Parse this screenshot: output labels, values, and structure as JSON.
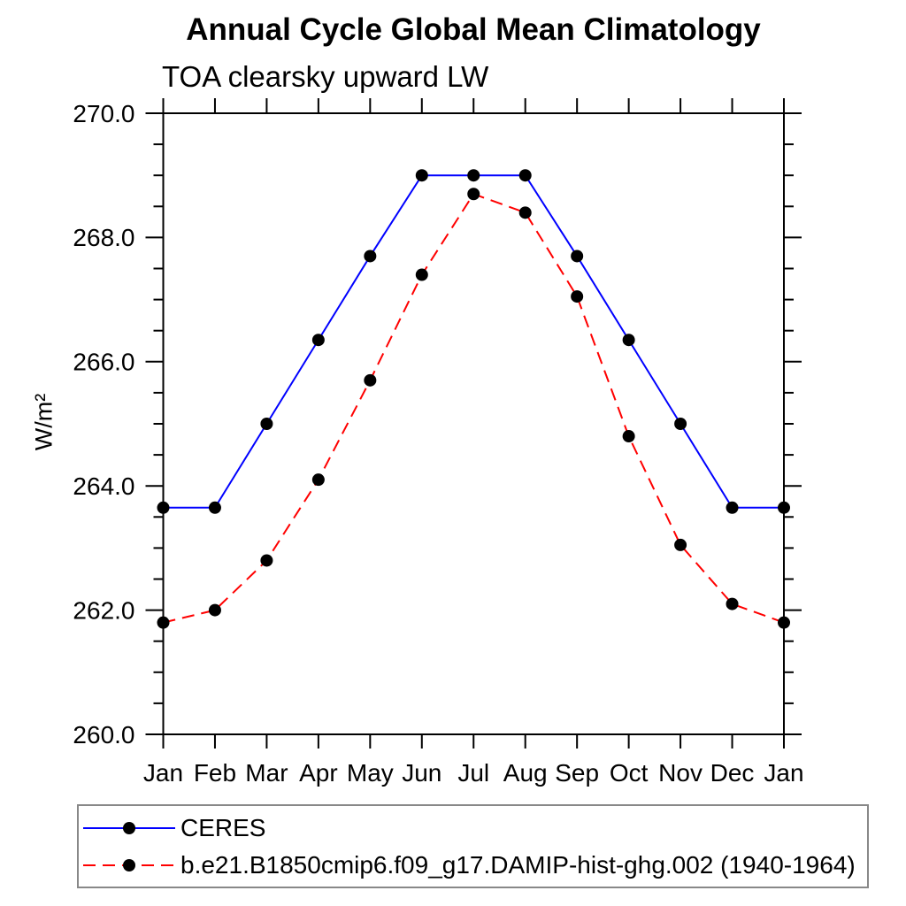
{
  "title": "Annual Cycle Global Mean Climatology",
  "subtitle": "TOA clearsky upward LW",
  "ylabel": "W/m²",
  "chart_data": {
    "type": "line",
    "categories": [
      "Jan",
      "Feb",
      "Mar",
      "Apr",
      "May",
      "Jun",
      "Jul",
      "Aug",
      "Sep",
      "Oct",
      "Nov",
      "Dec",
      "Jan"
    ],
    "title": "Annual Cycle Global Mean Climatology",
    "subtitle": "TOA clearsky upward LW",
    "xlabel": "",
    "ylabel": "W/m²",
    "ylim": [
      260.0,
      270.0
    ],
    "ytick_major_step": 2.0,
    "ytick_minor_step": 0.5,
    "ytick_labels": [
      "260.0",
      "262.0",
      "264.0",
      "266.0",
      "268.0",
      "270.0"
    ],
    "ytick_values": [
      260.0,
      262.0,
      264.0,
      266.0,
      268.0,
      270.0
    ],
    "grid": false,
    "legend_position": "bottom-left-box",
    "axis_color": "#000000",
    "marker_color": "#000000",
    "series": [
      {
        "name": "CERES",
        "color": "#0000ff",
        "style": "solid",
        "values": [
          263.65,
          263.65,
          265.0,
          266.35,
          267.7,
          269.0,
          269.0,
          269.0,
          267.7,
          266.35,
          265.0,
          263.65,
          263.65
        ]
      },
      {
        "name": "b.e21.B1850cmip6.f09_g17.DAMIP-hist-ghg.002 (1940-1964)",
        "color": "#ff0000",
        "style": "dashed",
        "values": [
          261.8,
          262.0,
          262.8,
          264.1,
          265.7,
          267.4,
          268.7,
          268.4,
          267.05,
          264.8,
          263.05,
          262.1,
          261.8
        ]
      }
    ]
  }
}
